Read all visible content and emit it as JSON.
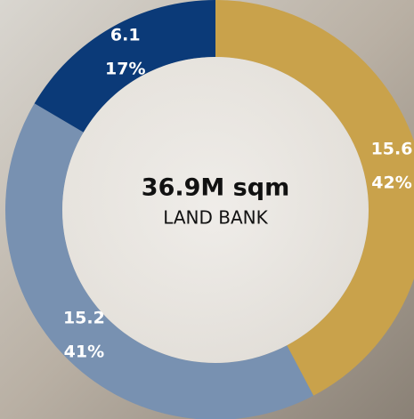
{
  "chart_data": {
    "type": "donut",
    "center_title": "36.9M sqm",
    "center_label": "LAND BANK",
    "values": [
      15.6,
      15.2,
      6.1
    ],
    "percent_labels": [
      "42%",
      "41%",
      "17%"
    ],
    "colors": [
      "#c9a24b",
      "#7891b1",
      "#0b3a78"
    ]
  }
}
